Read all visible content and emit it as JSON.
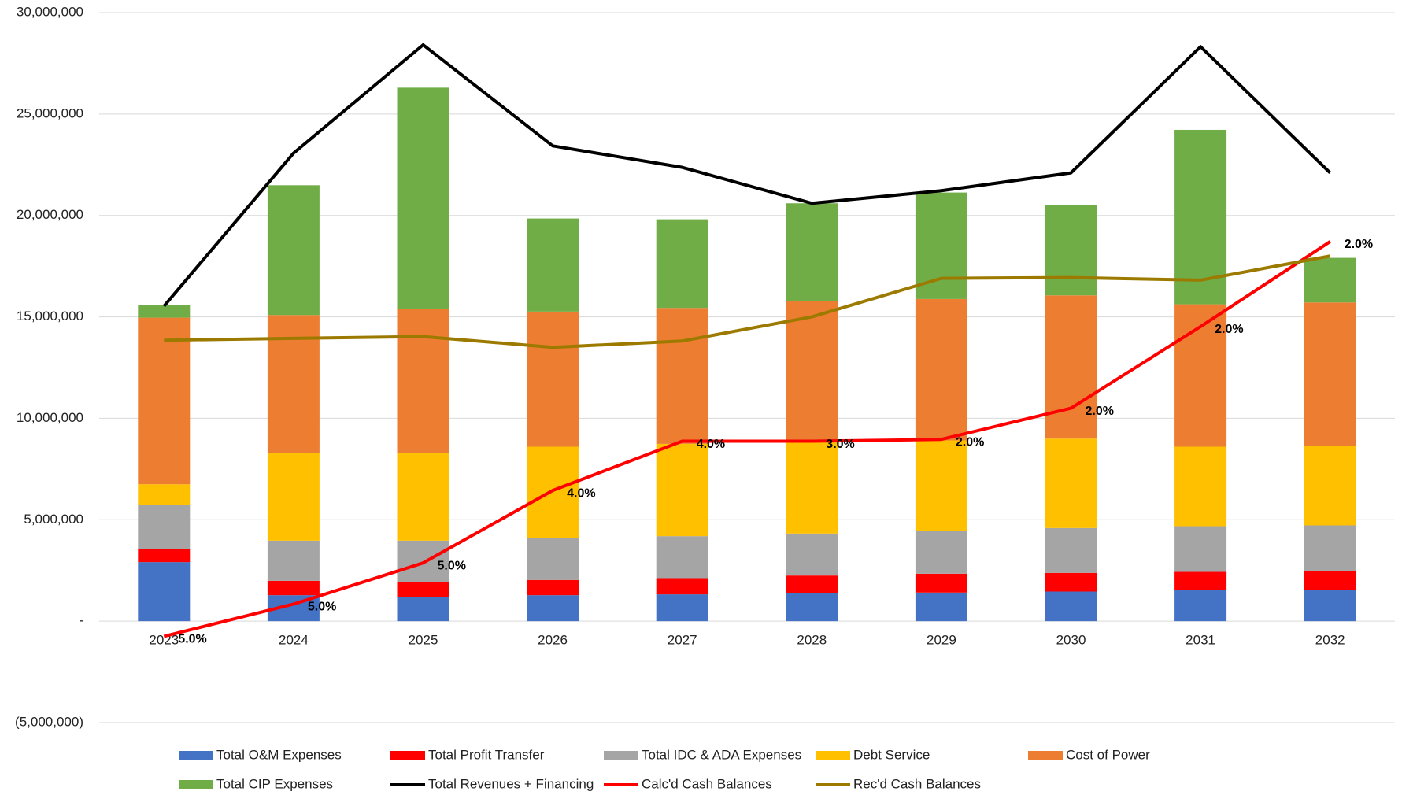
{
  "chart_data": {
    "type": "stacked_bar_line",
    "categories": [
      "2023",
      "2024",
      "2025",
      "2026",
      "2027",
      "2028",
      "2029",
      "2030",
      "2031",
      "2032"
    ],
    "series": [
      {
        "name": "Total O&M Expenses",
        "color": "#4472c4",
        "kind": "bar",
        "values": [
          2910000,
          1280000,
          1190000,
          1280000,
          1320000,
          1370000,
          1410000,
          1460000,
          1540000,
          1540000
        ]
      },
      {
        "name": "Total Profit Transfer",
        "color": "#ff0000",
        "kind": "bar",
        "values": [
          660000,
          710000,
          750000,
          750000,
          800000,
          880000,
          930000,
          920000,
          890000,
          930000
        ]
      },
      {
        "name": "Total IDC & ADA Expenses",
        "color": "#a5a5a5",
        "kind": "bar",
        "values": [
          2170000,
          1980000,
          2030000,
          2070000,
          2070000,
          2070000,
          2120000,
          2210000,
          2250000,
          2250000
        ]
      },
      {
        "name": "Debt Service",
        "color": "#ffc000",
        "kind": "bar",
        "values": [
          1010000,
          4320000,
          4320000,
          4500000,
          4550000,
          4500000,
          4450000,
          4410000,
          3920000,
          3930000
        ]
      },
      {
        "name": "Cost of Power",
        "color": "#ed7d31",
        "kind": "bar",
        "values": [
          8210000,
          6800000,
          7110000,
          6660000,
          6700000,
          6970000,
          6970000,
          7060000,
          7020000,
          7060000
        ]
      },
      {
        "name": "Total CIP Expenses",
        "color": "#70ad47",
        "kind": "bar",
        "values": [
          610000,
          6400000,
          10900000,
          4590000,
          4370000,
          4810000,
          5250000,
          4450000,
          8600000,
          2200000
        ]
      },
      {
        "name": "Total Revenues + Financing",
        "color": "#000000",
        "kind": "line",
        "values": [
          15530000,
          23070000,
          28410000,
          23430000,
          22370000,
          20600000,
          21220000,
          22100000,
          28320000,
          22100000
        ]
      },
      {
        "name": "Calc'd Cash Balances",
        "color": "#ff0000",
        "kind": "line",
        "values": [
          -750000,
          840000,
          2870000,
          6440000,
          8870000,
          8870000,
          8960000,
          10500000,
          14520000,
          18710000
        ],
        "point_annotations": [
          "5.0%",
          "5.0%",
          "5.0%",
          "4.0%",
          "4.0%",
          "3.0%",
          "2.0%",
          "2.0%",
          "2.0%",
          "2.0%"
        ]
      },
      {
        "name": "Rec'd Cash Balances",
        "color": "#9c7a00",
        "kind": "line",
        "values": [
          13850000,
          13940000,
          14030000,
          13500000,
          13810000,
          15000000,
          16900000,
          16940000,
          16810000,
          18000000
        ]
      }
    ],
    "ylim": [
      -5000000,
      30000000
    ],
    "yticks": [
      {
        "value": -5000000,
        "label": "(5,000,000)"
      },
      {
        "value": 0,
        "label": "-"
      },
      {
        "value": 5000000,
        "label": "5,000,000"
      },
      {
        "value": 10000000,
        "label": "10,000,000"
      },
      {
        "value": 15000000,
        "label": "15,000,000"
      },
      {
        "value": 20000000,
        "label": "20,000,000"
      },
      {
        "value": 25000000,
        "label": "25,000,000"
      },
      {
        "value": 30000000,
        "label": "30,000,000"
      }
    ],
    "grid": true,
    "legend": "bottom"
  }
}
